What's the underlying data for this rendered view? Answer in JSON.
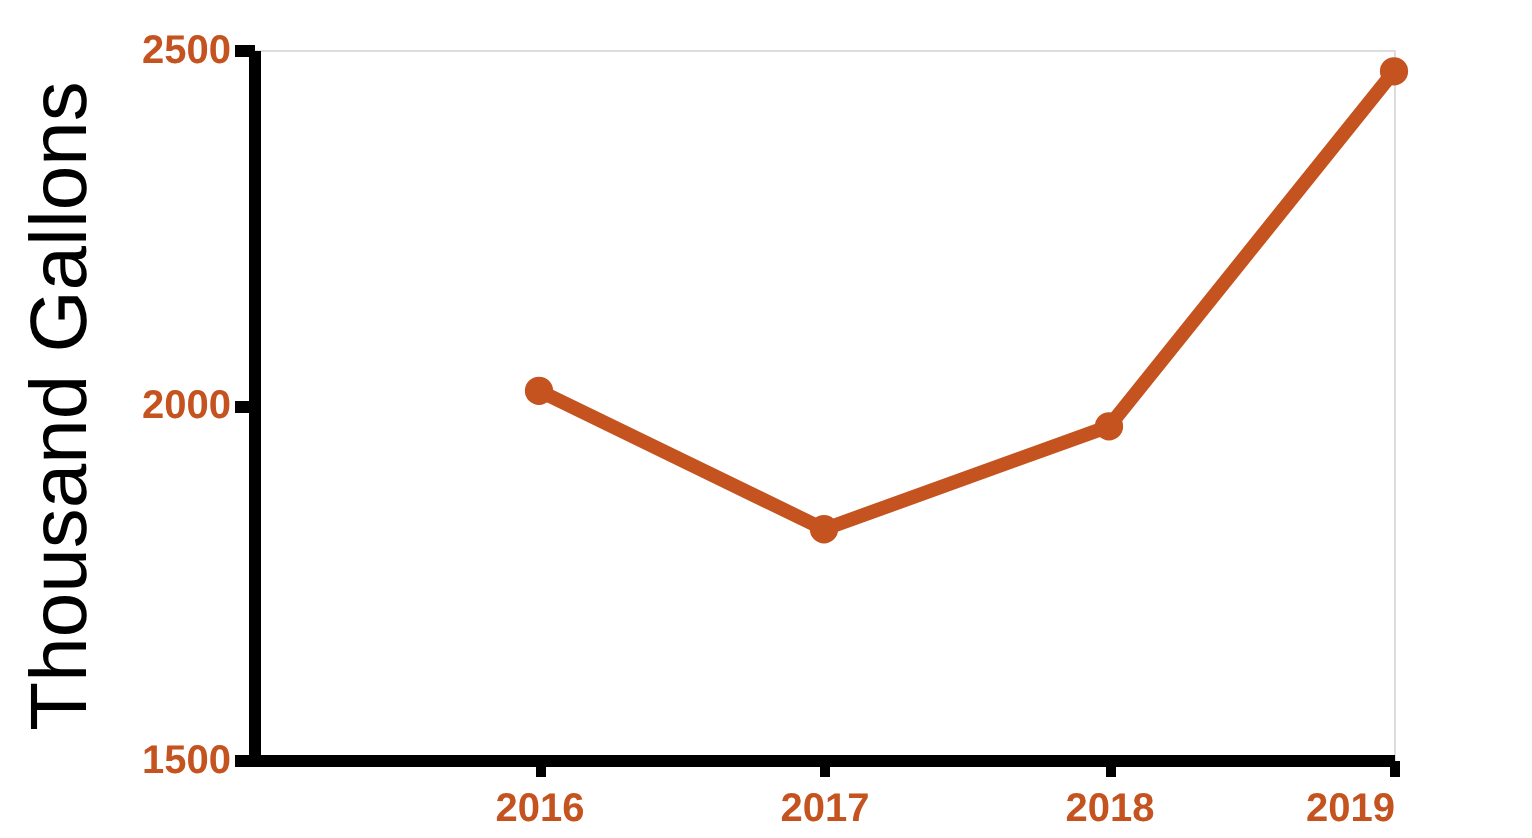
{
  "chart_data": {
    "type": "line",
    "ylabel": "Thousand Gallons",
    "x": [
      2016,
      2017,
      2018,
      2019
    ],
    "xlim": [
      2015,
      2019
    ],
    "xticks": [
      2016,
      2017,
      2018,
      2019
    ],
    "series": [
      {
        "color": "#c4531f",
        "values": [
          2020,
          1825,
          1970,
          2470
        ]
      }
    ],
    "ylim": [
      1500,
      2500
    ],
    "yticks": [
      1500,
      2000,
      2500
    ],
    "grid": false,
    "marker": "circle",
    "line_style": "solid"
  }
}
